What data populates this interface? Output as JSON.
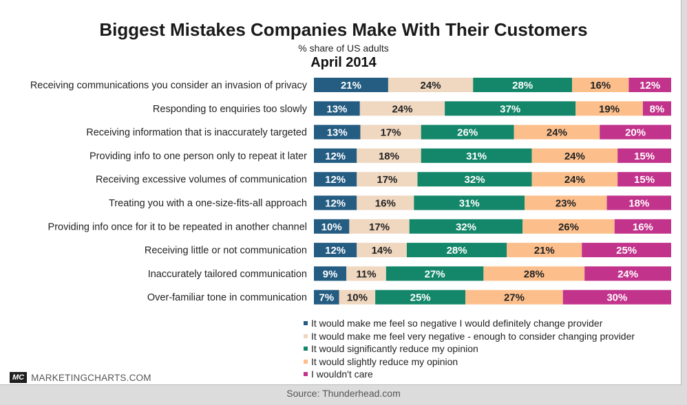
{
  "header": {
    "title": "Biggest Mistakes Companies Make With Their Customers",
    "subtitle": "% share of US adults",
    "period": "April 2014"
  },
  "colors": [
    "#245c82",
    "#efd7c0",
    "#14876a",
    "#fcbf8c",
    "#c2338b"
  ],
  "label_colors": [
    "#ffffff",
    "#222222",
    "#ffffff",
    "#222222",
    "#ffffff"
  ],
  "chart_data": {
    "type": "bar",
    "orientation": "horizontal",
    "stacked": true,
    "normalized": true,
    "categories": [
      "Receiving communications you consider an invasion of privacy",
      "Responding to enquiries too slowly",
      "Receiving information that is inaccurately targeted",
      "Providing info to one person only to repeat it later",
      "Receiving excessive volumes of communication",
      "Treating you with a one-size-fits-all approach",
      "Providing info once for it to be repeated in another channel",
      "Receiving little or not communication",
      "Inaccurately tailored communication",
      "Over-familiar tone in communication"
    ],
    "series": [
      {
        "name": "It would make me feel so negative I would definitely change provider",
        "values": [
          21,
          13,
          13,
          12,
          12,
          12,
          10,
          12,
          9,
          7
        ]
      },
      {
        "name": "It would make me feel very negative - enough to consider changing provider",
        "values": [
          24,
          24,
          17,
          18,
          17,
          16,
          17,
          14,
          11,
          10
        ]
      },
      {
        "name": "It would significantly reduce my opinion",
        "values": [
          28,
          37,
          26,
          31,
          32,
          31,
          32,
          28,
          27,
          25
        ]
      },
      {
        "name": "It would slightly reduce my opinion",
        "values": [
          16,
          19,
          24,
          24,
          24,
          23,
          26,
          21,
          28,
          27
        ]
      },
      {
        "name": "I wouldn't care",
        "values": [
          12,
          8,
          20,
          15,
          15,
          18,
          16,
          25,
          24,
          30
        ]
      }
    ],
    "value_suffix": "%",
    "legend_position": "bottom-right"
  },
  "footer": {
    "brand_logo": "MC",
    "brand_name": "MARKETINGCHARTS.COM",
    "source": "Source: Thunderhead.com"
  }
}
